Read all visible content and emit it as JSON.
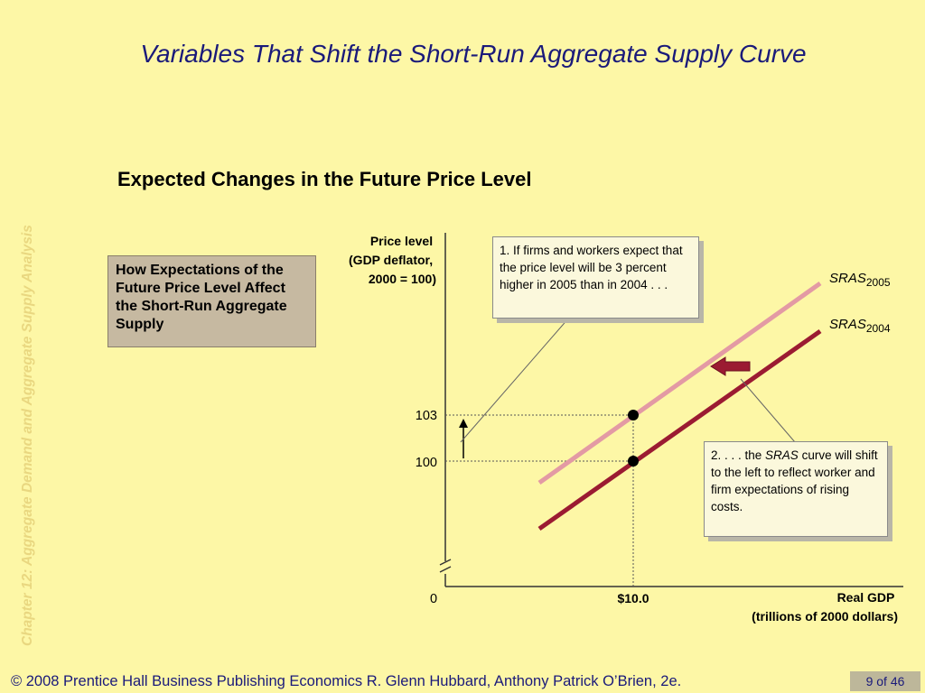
{
  "slide": {
    "title": "Variables That Shift the Short-Run Aggregate Supply Curve",
    "side_label": "Chapter 12:  Aggregate Demand and Aggregate Supply Analysis",
    "subtitle": "Expected Changes in the Future Price Level",
    "infobox": "How Expectations of the Future Price Level Affect the Short-Run Aggregate Supply",
    "footer": "© 2008 Prentice Hall Business Publishing   Economics  R. Glenn Hubbard, Anthony Patrick O’Brien, 2e.",
    "page": "9 of 46"
  },
  "callouts": {
    "c1": "1.  If firms and workers expect that the price level will be 3 percent higher in 2005 than in 2004 . . .",
    "c2_pre": "2. . . . the ",
    "c2_em": "SRAS",
    "c2_post": " curve will shift to the left to reflect worker and firm expectations of rising costs."
  },
  "chart_data": {
    "type": "line",
    "ylabel_lines": [
      "Price level",
      "(GDP deflator,",
      "2000 = 100)"
    ],
    "xlabel_lines": [
      "Real GDP",
      "(trillions of 2000 dollars)"
    ],
    "origin_label": "0",
    "x_tick_label": "$10.0",
    "y_tick_labels": [
      "100",
      "103"
    ],
    "series": [
      {
        "name_main": "SRAS",
        "name_sub": "2005",
        "color": "#e39aa4",
        "point": [
          10.0,
          103
        ]
      },
      {
        "name_main": "SRAS",
        "name_sub": "2004",
        "color": "#9b1b32",
        "point": [
          10.0,
          100
        ]
      }
    ],
    "shift_arrow_color": "#9b1b32"
  }
}
